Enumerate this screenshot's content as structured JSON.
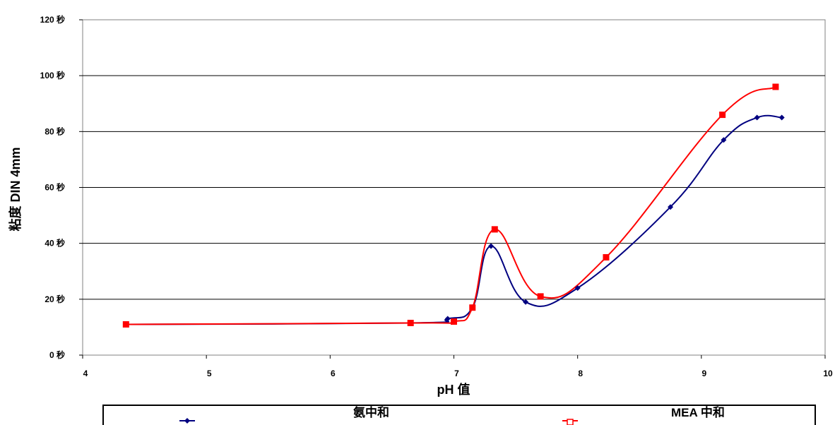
{
  "chart_data": {
    "type": "line",
    "xlabel": "pH 值",
    "ylabel": "粘度 DIN 4mm",
    "xlim": [
      4,
      10
    ],
    "ylim": [
      0,
      120
    ],
    "x_ticks": [
      "4",
      "5",
      "6",
      "7",
      "8",
      "9",
      "10"
    ],
    "y_ticks": [
      "0 秒",
      "20 秒",
      "40 秒",
      "60 秒",
      "80 秒",
      "100 秒",
      "120 秒"
    ],
    "grid": "horizontal",
    "legend_position": "bottom",
    "series": [
      {
        "name": "氨中和",
        "color": "#000080",
        "marker": "diamond",
        "x": [
          4.35,
          6.65,
          6.95,
          7.15,
          7.3,
          7.58,
          8.0,
          8.75,
          9.18,
          9.45,
          9.65
        ],
        "y": [
          11,
          11.5,
          13,
          17,
          39,
          19,
          24,
          53,
          77,
          85,
          85
        ]
      },
      {
        "name": "MEA 中和",
        "color": "#ff0000",
        "marker": "square",
        "x": [
          4.35,
          6.65,
          7.0,
          7.15,
          7.33,
          7.7,
          8.23,
          9.17,
          9.6
        ],
        "y": [
          11,
          11.5,
          12,
          17,
          45,
          21,
          35,
          86,
          96
        ]
      }
    ]
  }
}
